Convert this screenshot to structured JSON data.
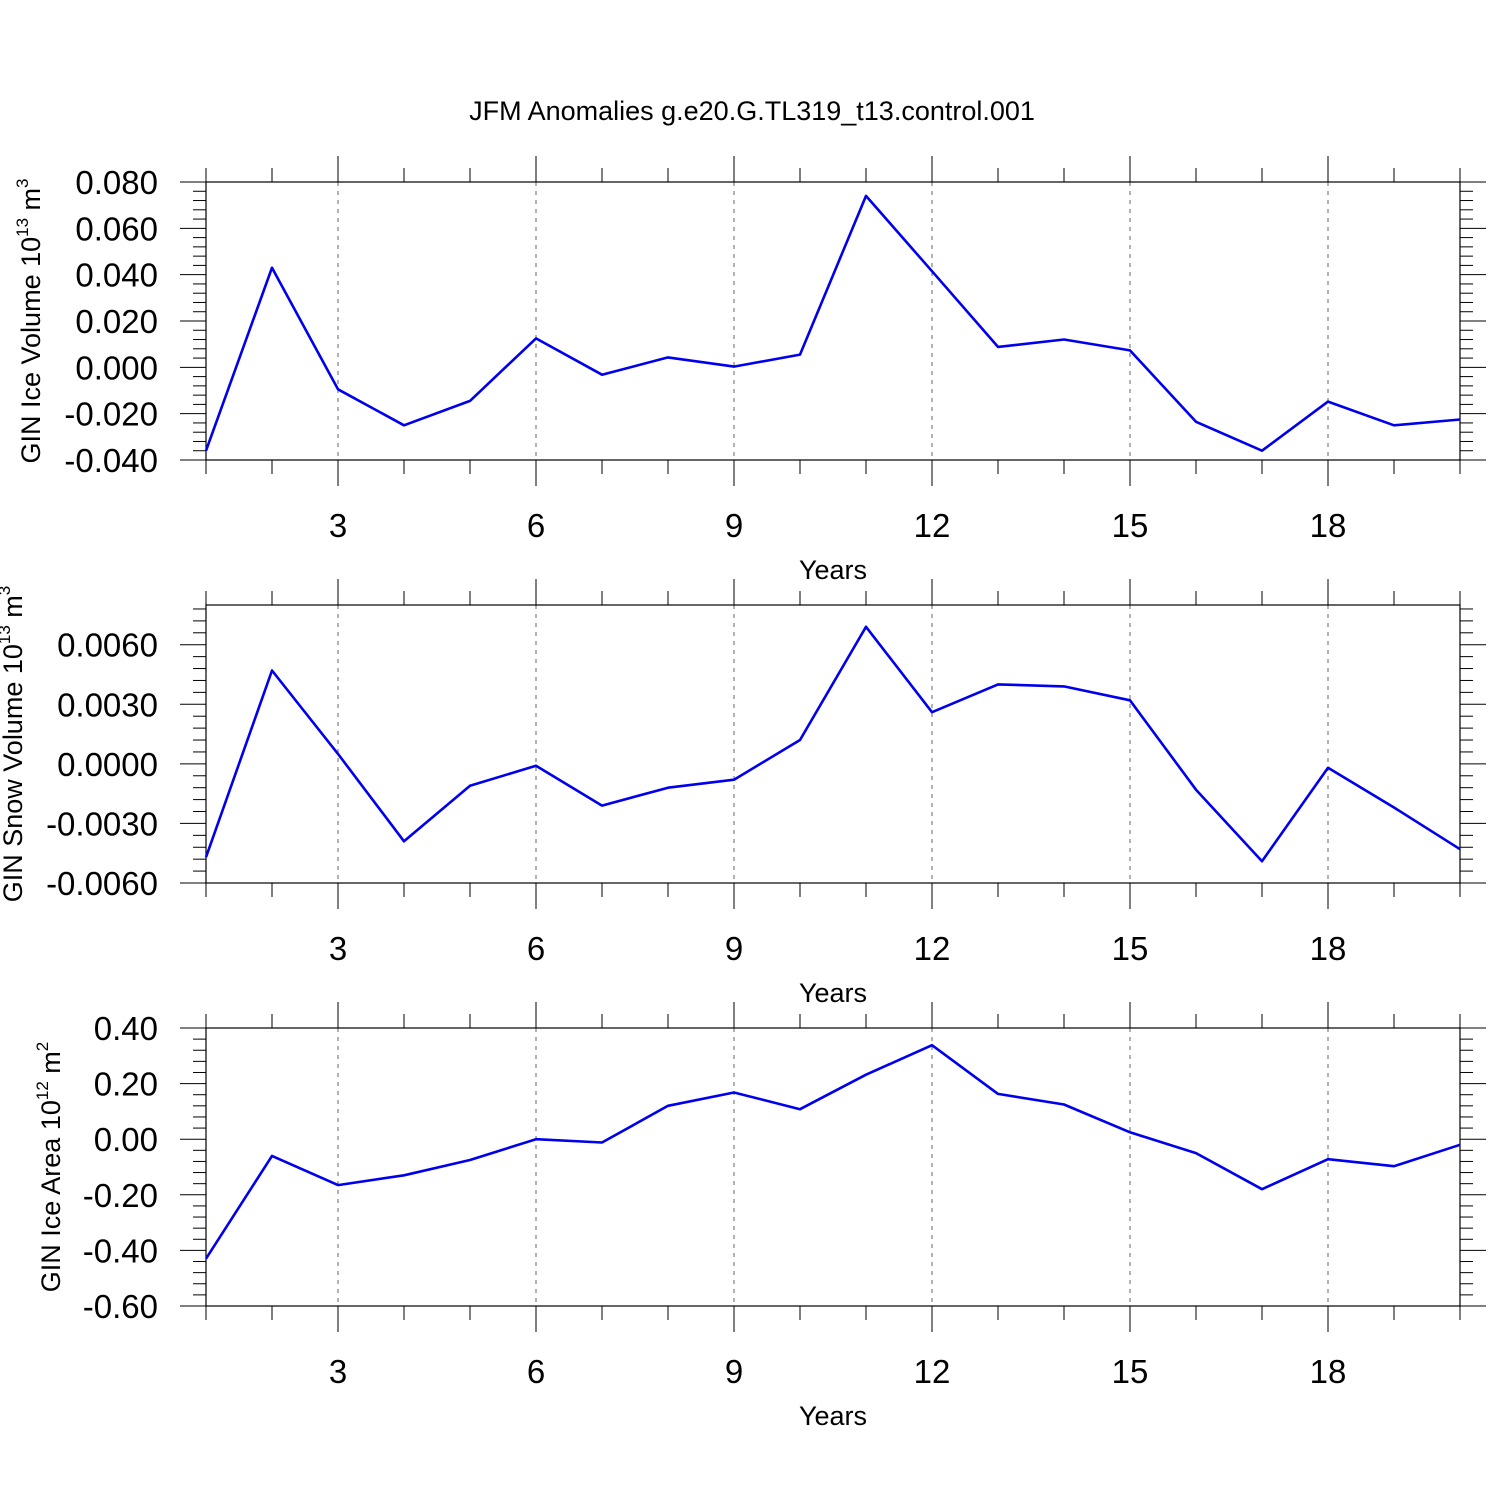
{
  "title": "JFM Anomalies g.e20.G.TL319_t13.control.001",
  "line_color": "#0000ee",
  "chart_data": [
    {
      "type": "line",
      "title": "JFM Anomalies g.e20.G.TL319_t13.control.001",
      "xlabel": "Years",
      "ylabel": {
        "text": "GIN Ice Volume 10",
        "sup": "13",
        "unit": " m",
        "unit_sup": "3"
      },
      "xlim": [
        1,
        20
      ],
      "ylim": [
        -0.04,
        0.08
      ],
      "x_ticks": [
        3,
        6,
        9,
        12,
        15,
        18
      ],
      "y_ticks": [
        -0.04,
        -0.02,
        0.0,
        0.02,
        0.04,
        0.06,
        0.08
      ],
      "y_tick_labels": [
        "-0.040",
        "-0.020",
        "0.000",
        "0.020",
        "0.040",
        "0.060",
        "0.080"
      ],
      "x": [
        1,
        2,
        3,
        4,
        5,
        6,
        7,
        8,
        9,
        10,
        11,
        12,
        13,
        14,
        15,
        16,
        17,
        18,
        19,
        20
      ],
      "series": [
        {
          "values": [
            -0.036,
            0.043,
            -0.0095,
            -0.025,
            -0.0145,
            0.0125,
            -0.0032,
            0.0043,
            0.0003,
            0.0055,
            0.074,
            0.0415,
            0.0088,
            0.012,
            0.0073,
            -0.0235,
            -0.036,
            -0.0148,
            -0.025,
            -0.0225
          ]
        }
      ],
      "grid": "vertical dashed at major x ticks"
    },
    {
      "type": "line",
      "xlabel": "Years",
      "ylabel": {
        "text": "GIN Snow Volume 10",
        "sup": "13",
        "unit": " m",
        "unit_sup": "3"
      },
      "xlim": [
        1,
        20
      ],
      "ylim": [
        -0.006,
        0.008
      ],
      "x_ticks": [
        3,
        6,
        9,
        12,
        15,
        18
      ],
      "y_ticks": [
        -0.006,
        -0.003,
        0.0,
        0.003,
        0.006
      ],
      "y_tick_labels": [
        "-0.0060",
        "-0.0030",
        "0.0000",
        "0.0030",
        "0.0060"
      ],
      "x": [
        1,
        2,
        3,
        4,
        5,
        6,
        7,
        8,
        9,
        10,
        11,
        12,
        13,
        14,
        15,
        16,
        17,
        18,
        19,
        20
      ],
      "series": [
        {
          "values": [
            -0.0047,
            0.0047,
            0.0005,
            -0.0039,
            -0.0011,
            -0.0001,
            -0.0021,
            -0.0012,
            -0.0008,
            0.0012,
            0.0069,
            0.0026,
            0.004,
            0.0039,
            0.0032,
            -0.0013,
            -0.0049,
            -0.0002,
            -0.0022,
            -0.0043
          ]
        }
      ],
      "grid": "vertical dashed at major x ticks"
    },
    {
      "type": "line",
      "xlabel": "Years",
      "ylabel": {
        "text": "GIN Ice Area 10",
        "sup": "12",
        "unit": " m",
        "unit_sup": "2"
      },
      "xlim": [
        1,
        20
      ],
      "ylim": [
        -0.6,
        0.4
      ],
      "x_ticks": [
        3,
        6,
        9,
        12,
        15,
        18
      ],
      "y_ticks": [
        -0.6,
        -0.4,
        -0.2,
        0.0,
        0.2,
        0.4
      ],
      "y_tick_labels": [
        "-0.60",
        "-0.40",
        "-0.20",
        "0.00",
        "0.20",
        "0.40"
      ],
      "x": [
        1,
        2,
        3,
        4,
        5,
        6,
        7,
        8,
        9,
        10,
        11,
        12,
        13,
        14,
        15,
        16,
        17,
        18,
        19,
        20
      ],
      "series": [
        {
          "values": [
            -0.43,
            -0.06,
            -0.165,
            -0.13,
            -0.075,
            0.0,
            -0.012,
            0.12,
            0.168,
            0.108,
            0.232,
            0.338,
            0.163,
            0.125,
            0.025,
            -0.05,
            -0.18,
            -0.072,
            -0.097,
            -0.02
          ]
        }
      ],
      "grid": "vertical dashed at major x ticks"
    }
  ]
}
